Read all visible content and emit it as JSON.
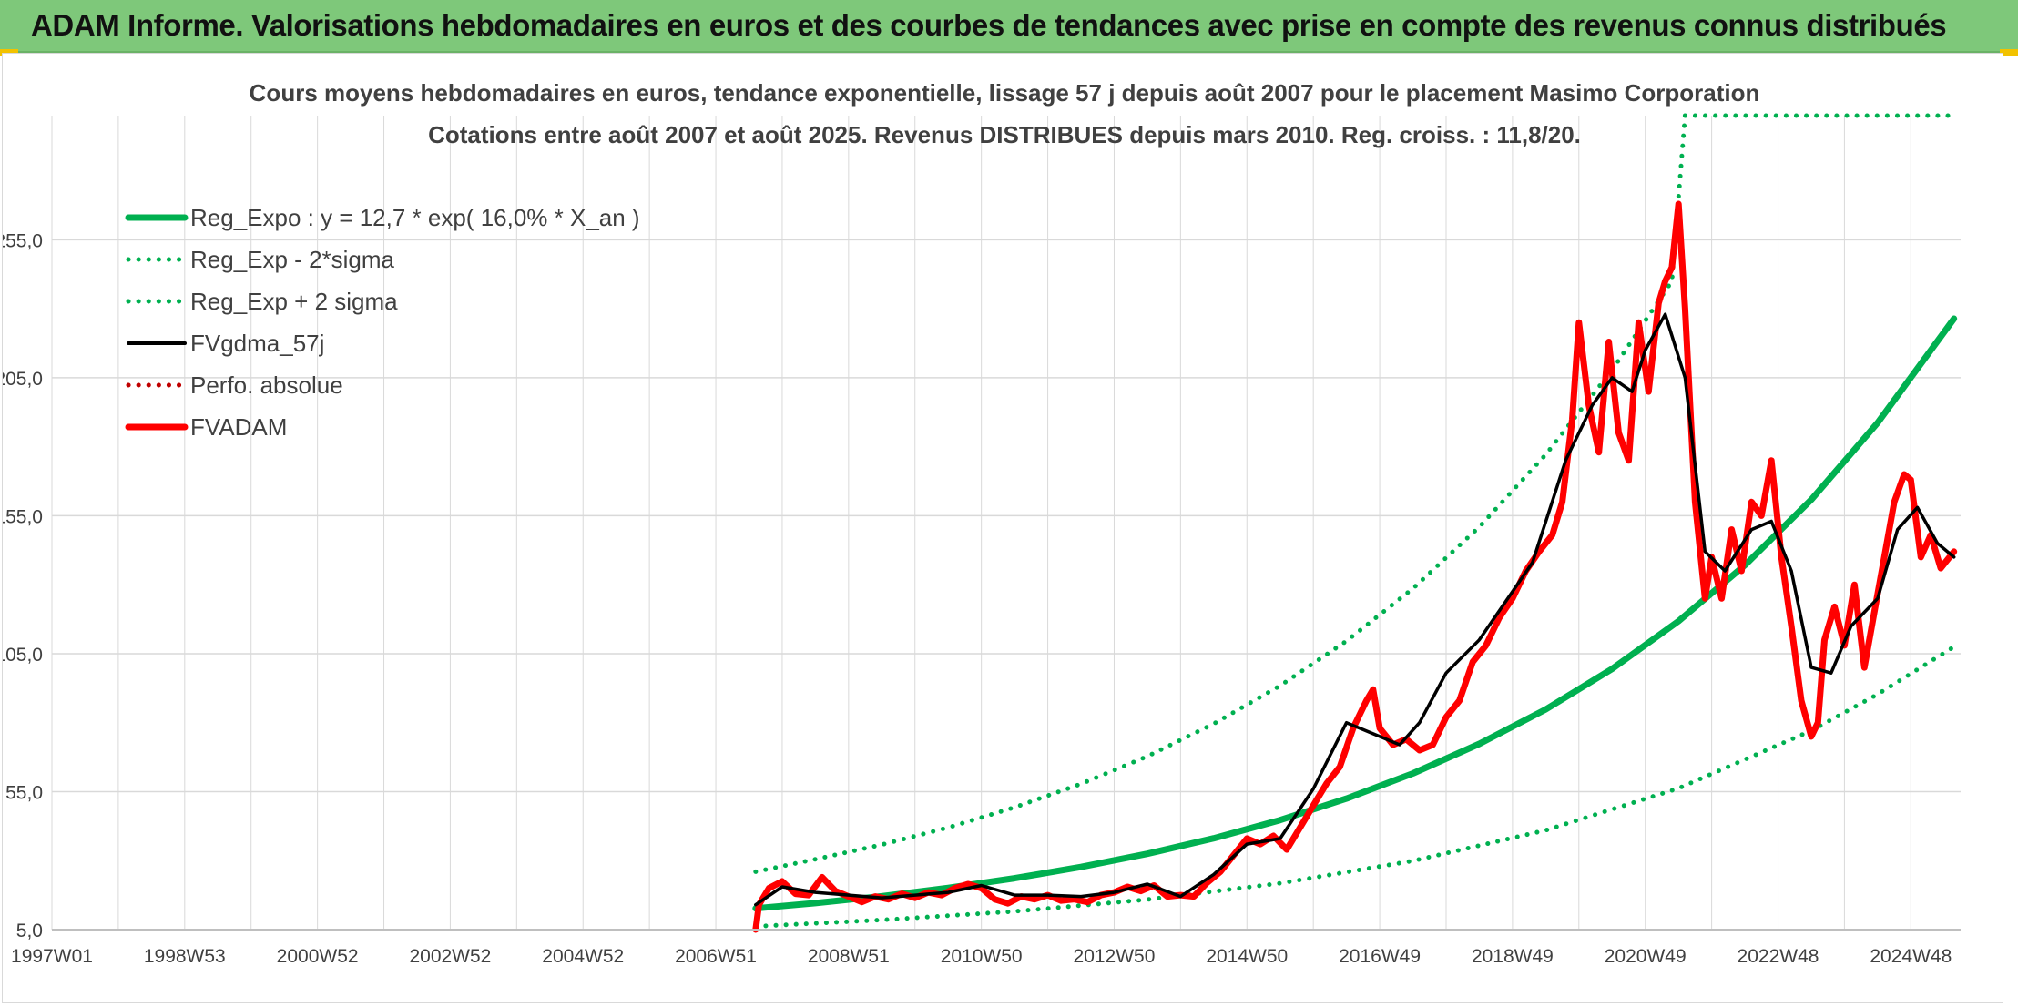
{
  "banner": {
    "title": "ADAM Informe. Valorisations hebdomadaires en euros et des courbes de tendances avec prise en compte des revenus connus distribués"
  },
  "colors": {
    "banner_bg": "#7ec87a",
    "reg_green": "#00b050",
    "fv_black": "#000000",
    "fvadam_red": "#ff0000",
    "perfo_red": "#c00000",
    "grid": "#d9d9d9",
    "text": "#404040"
  },
  "chart_data": {
    "type": "line",
    "title": "Cours moyens hebdomadaires en euros, tendance exponentielle, lissage 57 j depuis août 2007 pour le placement Masimo Corporation",
    "subtitle": "Cotations entre août 2007 et août 2025. Revenus DISTRIBUES depuis mars 2010. Reg. croiss. : 11,8/20.",
    "x_tick_labels": [
      "1997W01",
      "1998W53",
      "2000W52",
      "2002W52",
      "2004W52",
      "2006W51",
      "2008W51",
      "2010W50",
      "2012W50",
      "2014W50",
      "2016W49",
      "2018W49",
      "2020W49",
      "2022W48",
      "2024W48"
    ],
    "x_tick_years": [
      1997.0,
      1999.0,
      2001.0,
      2003.0,
      2005.0,
      2007.0,
      2009.0,
      2011.0,
      2013.0,
      2015.0,
      2017.0,
      2019.0,
      2021.0,
      2023.0,
      2025.0
    ],
    "y_tick_labels": [
      "5,0",
      "55,0",
      "105,0",
      "155,0",
      "205,0",
      "255,0"
    ],
    "y_ticks": [
      5,
      55,
      105,
      155,
      205,
      255
    ],
    "xlim": [
      1997.0,
      2025.75
    ],
    "ylim": [
      5,
      300
    ],
    "grid": true,
    "legend_position": "top-left",
    "series": [
      {
        "name": "Reg_Expo : y = 12,7 * exp( 16,0% *  X_an )",
        "style": "solid-thick",
        "color": "#00b050",
        "x": [
          2007.6,
          2008.5,
          2009.5,
          2010.5,
          2011.5,
          2012.5,
          2013.5,
          2014.5,
          2015.5,
          2016.5,
          2017.5,
          2018.5,
          2019.5,
          2020.5,
          2021.5,
          2022.5,
          2023.5,
          2024.5,
          2025.65
        ],
        "values": [
          12.7,
          14.6,
          17.1,
          20.1,
          23.6,
          27.7,
          32.5,
          38.1,
          44.7,
          52.5,
          61.6,
          72.3,
          84.8,
          99.5,
          116.8,
          137.1,
          160.8,
          188.7,
          226.4
        ]
      },
      {
        "name": "Reg_Exp - 2*sigma",
        "style": "dotted",
        "color": "#00b050",
        "x": [
          2007.6,
          2009.5,
          2011.5,
          2013.5,
          2015.5,
          2017.5,
          2019.5,
          2021.5,
          2023.5,
          2024.5,
          2025.65
        ],
        "values": [
          6.2,
          8.5,
          11.6,
          15.9,
          21.8,
          29.9,
          41.0,
          56.2,
          77.1,
          90.3,
          107.5
        ]
      },
      {
        "name": "Reg_Exp + 2 sigma",
        "style": "dotted",
        "color": "#00b050",
        "x": [
          2007.6,
          2008.5,
          2009.5,
          2010.5,
          2011.5,
          2012.5,
          2013.5,
          2014.5,
          2015.5,
          2016.5,
          2017.5,
          2018.5,
          2019.5,
          2020.5,
          2021.4,
          2021.6,
          2025.65
        ],
        "values": [
          26.0,
          30.5,
          35.8,
          42.0,
          49.3,
          57.8,
          67.8,
          79.6,
          93.4,
          109.6,
          128.6,
          150.9,
          177.1,
          207.8,
          240.0,
          300.0,
          300.0
        ]
      },
      {
        "name": "FVgdma_57j",
        "style": "solid",
        "color": "#000000",
        "x": [
          2007.6,
          2008.0,
          2008.5,
          2009.0,
          2009.5,
          2010.0,
          2010.5,
          2011.0,
          2011.5,
          2012.0,
          2012.5,
          2013.0,
          2013.5,
          2014.0,
          2014.5,
          2015.0,
          2015.5,
          2016.0,
          2016.5,
          2017.0,
          2017.3,
          2017.6,
          2018.0,
          2018.5,
          2018.9,
          2019.3,
          2019.8,
          2020.2,
          2020.5,
          2020.8,
          2021.0,
          2021.3,
          2021.6,
          2021.9,
          2022.2,
          2022.6,
          2022.9,
          2023.2,
          2023.5,
          2023.8,
          2024.1,
          2024.5,
          2024.8,
          2025.1,
          2025.4,
          2025.65
        ],
        "values": [
          14.0,
          20.5,
          18.5,
          17.5,
          16.5,
          17.5,
          18.5,
          21.0,
          17.5,
          17.5,
          17.0,
          18.5,
          21.5,
          17.0,
          25.0,
          36.0,
          38.0,
          56.0,
          80.0,
          75.0,
          72.0,
          80.0,
          98.0,
          110.0,
          124.0,
          138.0,
          175.0,
          195.0,
          205.0,
          200.0,
          215.0,
          228.0,
          205.0,
          142.0,
          135.0,
          150.0,
          153.0,
          135.0,
          100.0,
          98.0,
          115.0,
          125.0,
          150.0,
          158.0,
          145.0,
          140.0
        ]
      },
      {
        "name": "Perfo. absolue",
        "style": "dotted",
        "color": "#c00000",
        "x": [],
        "values": []
      },
      {
        "name": "FVADAM",
        "style": "solid-thick",
        "color": "#ff0000",
        "x": [
          2007.6,
          2007.65,
          2007.8,
          2008.0,
          2008.2,
          2008.4,
          2008.6,
          2008.8,
          2009.0,
          2009.2,
          2009.4,
          2009.6,
          2009.8,
          2010.0,
          2010.2,
          2010.4,
          2010.6,
          2010.8,
          2011.0,
          2011.2,
          2011.4,
          2011.6,
          2011.8,
          2012.0,
          2012.2,
          2012.4,
          2012.6,
          2012.8,
          2013.0,
          2013.2,
          2013.4,
          2013.6,
          2013.8,
          2014.0,
          2014.2,
          2014.4,
          2014.6,
          2014.8,
          2015.0,
          2015.2,
          2015.4,
          2015.6,
          2015.8,
          2016.0,
          2016.2,
          2016.4,
          2016.6,
          2016.8,
          2016.9,
          2017.0,
          2017.2,
          2017.4,
          2017.6,
          2017.8,
          2018.0,
          2018.2,
          2018.4,
          2018.6,
          2018.8,
          2019.0,
          2019.2,
          2019.4,
          2019.6,
          2019.75,
          2019.9,
          2020.0,
          2020.15,
          2020.3,
          2020.45,
          2020.6,
          2020.75,
          2020.9,
          2021.05,
          2021.2,
          2021.3,
          2021.4,
          2021.5,
          2021.6,
          2021.75,
          2021.9,
          2022.0,
          2022.15,
          2022.3,
          2022.45,
          2022.6,
          2022.75,
          2022.9,
          2023.05,
          2023.2,
          2023.35,
          2023.5,
          2023.6,
          2023.7,
          2023.85,
          2024.0,
          2024.15,
          2024.3,
          2024.45,
          2024.6,
          2024.75,
          2024.9,
          2025.0,
          2025.15,
          2025.3,
          2025.45,
          2025.65
        ],
        "values": [
          5.0,
          14.0,
          20.0,
          22.5,
          18.0,
          17.5,
          24.0,
          19.0,
          17.0,
          15.0,
          17.0,
          16.0,
          18.0,
          16.5,
          18.5,
          17.5,
          20.0,
          21.5,
          20.0,
          16.0,
          14.5,
          17.0,
          16.0,
          17.5,
          15.5,
          16.0,
          15.0,
          17.5,
          18.5,
          20.5,
          19.0,
          21.0,
          17.0,
          17.5,
          17.0,
          22.0,
          26.0,
          32.0,
          38.0,
          36.0,
          39.0,
          34.0,
          42.0,
          50.0,
          58.0,
          64.0,
          78.0,
          88.0,
          92.0,
          78.0,
          72.0,
          74.0,
          70.0,
          72.0,
          82.0,
          88.0,
          102.0,
          108.0,
          118.0,
          125.0,
          135.0,
          142.0,
          148.0,
          160.0,
          190.0,
          225.0,
          195.0,
          178.0,
          218.0,
          185.0,
          175.0,
          225.0,
          200.0,
          232.0,
          240.0,
          245.0,
          268.0,
          230.0,
          160.0,
          125.0,
          140.0,
          125.0,
          150.0,
          135.0,
          160.0,
          155.0,
          175.0,
          140.0,
          115.0,
          88.0,
          75.0,
          80.0,
          110.0,
          122.0,
          108.0,
          130.0,
          100.0,
          120.0,
          140.0,
          160.0,
          170.0,
          168.0,
          140.0,
          148.0,
          136.0,
          142.0
        ]
      }
    ]
  }
}
